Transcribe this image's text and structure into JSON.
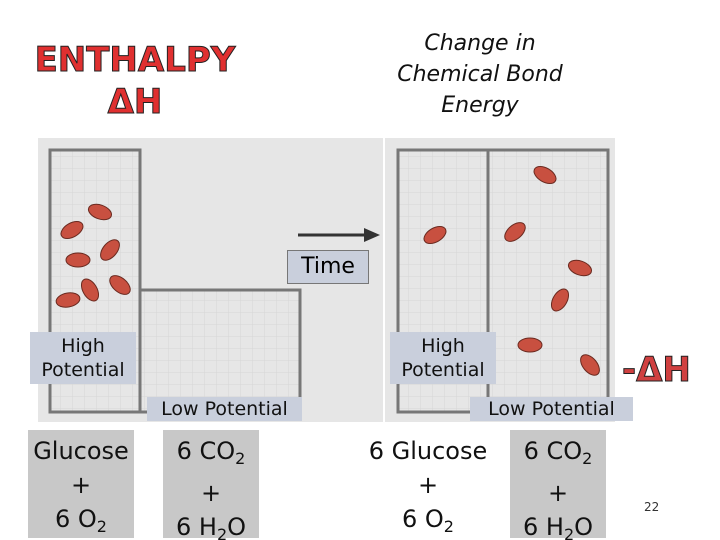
{
  "title": {
    "line1": "ENTHALPY",
    "line2": "ΔH"
  },
  "caption": [
    "Change in",
    "Chemical Bond",
    "Energy"
  ],
  "arrow_label": "Time",
  "left": {
    "high": "High Potential",
    "low": "Low Potential",
    "box1": [
      [
        "Glucose"
      ],
      [
        "+"
      ],
      [
        "6 O",
        "2"
      ]
    ],
    "box2": [
      [
        "6 CO",
        "2"
      ],
      [
        "+"
      ],
      [
        "6 H",
        "2",
        "O"
      ]
    ]
  },
  "right": {
    "high": "High Potential",
    "low": "Low Potential",
    "box1": [
      [
        "6 Glucose"
      ],
      [
        "+"
      ],
      [
        "6 O",
        "2"
      ]
    ],
    "box2": [
      [
        "6 CO",
        "2"
      ],
      [
        "+"
      ],
      [
        "6 H",
        "2",
        "O"
      ]
    ]
  },
  "delta": "-ΔH",
  "page_number": "22"
}
